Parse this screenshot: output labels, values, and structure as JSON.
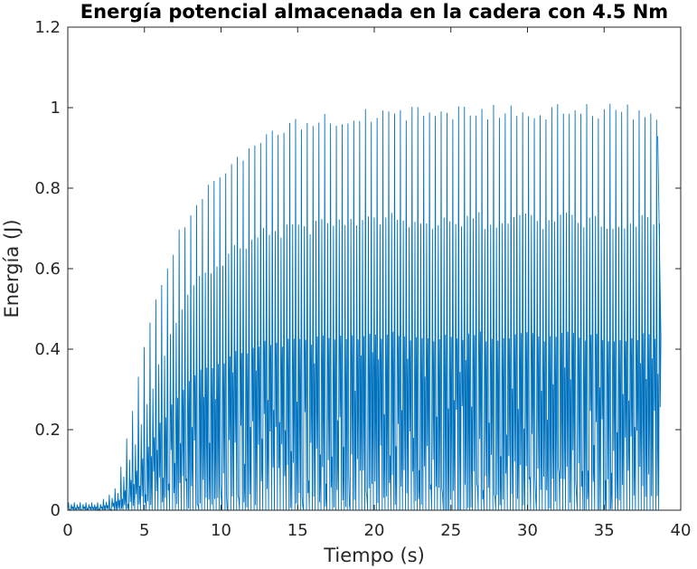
{
  "chart_data": {
    "type": "line",
    "title": "Energía potencial almacenada en la cadera con 4.5 Nm",
    "xlabel": "Tiempo (s)",
    "ylabel": "Energía (J)",
    "xlim": [
      0,
      40
    ],
    "ylim": [
      0,
      1.2
    ],
    "xticks": [
      0,
      5,
      10,
      15,
      20,
      25,
      30,
      35,
      40
    ],
    "xtick_labels": [
      "0",
      "5",
      "10",
      "15",
      "20",
      "25",
      "30",
      "35",
      "40"
    ],
    "yticks": [
      0,
      0.2,
      0.4,
      0.6,
      0.8,
      1.0,
      1.2
    ],
    "ytick_labels": [
      "0",
      "0.2",
      "0.4",
      "0.6",
      "0.8",
      "1",
      "1.2"
    ],
    "grid": false,
    "legend": "none",
    "series_color": "#0072BD",
    "series": [
      {
        "x_start": 0,
        "x_end": 38.5,
        "oscillation_period_s": 0.38,
        "envelope_major_peak": {
          "x": [
            0,
            2,
            3,
            3.5,
            4,
            4.5,
            5,
            5.5,
            6,
            6.5,
            7,
            8,
            9,
            10,
            11,
            12,
            13,
            14,
            15,
            16,
            18,
            20,
            22,
            25,
            30,
            35,
            38.5
          ],
          "y": [
            0.02,
            0.02,
            0.05,
            0.12,
            0.22,
            0.32,
            0.42,
            0.5,
            0.56,
            0.62,
            0.68,
            0.76,
            0.82,
            0.86,
            0.89,
            0.92,
            0.94,
            0.96,
            0.975,
            0.985,
            0.995,
            1.0,
            1.005,
            1.008,
            1.01,
            1.01,
            1.01
          ]
        },
        "envelope_minor_peak": {
          "x": [
            0,
            2,
            3,
            4,
            5,
            6,
            7,
            8,
            9,
            10,
            11,
            12,
            14,
            16,
            18,
            20,
            25,
            30,
            38.5
          ],
          "y": [
            0.015,
            0.015,
            0.04,
            0.15,
            0.28,
            0.4,
            0.5,
            0.57,
            0.62,
            0.65,
            0.68,
            0.7,
            0.72,
            0.73,
            0.735,
            0.74,
            0.742,
            0.743,
            0.743
          ]
        },
        "minimum": 0.0
      }
    ]
  }
}
